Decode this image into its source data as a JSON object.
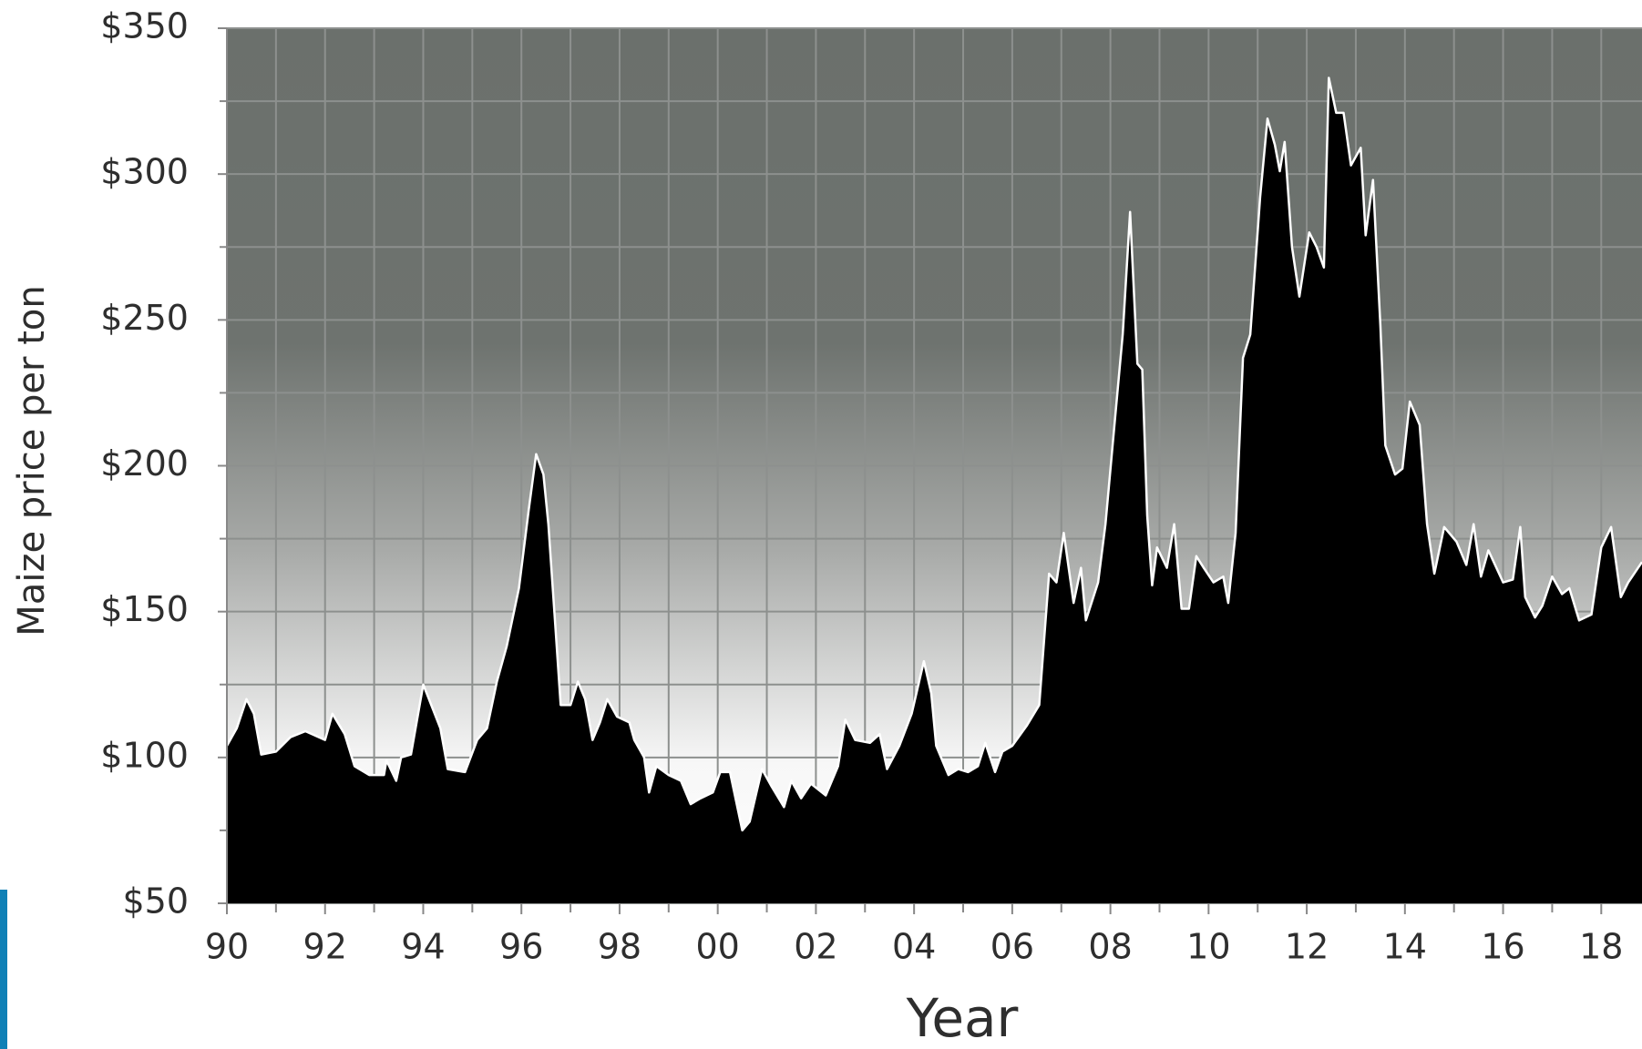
{
  "chart_data": {
    "type": "area",
    "y_label": "Maize price per ton",
    "x_label": "Year",
    "color": "#000000",
    "line_color": "#ffffff",
    "grid": true,
    "xlim": [
      1990,
      2018.83
    ],
    "ylim": [
      50,
      350
    ],
    "xticks": [
      {
        "value": 1990,
        "label": "90"
      },
      {
        "value": 1992,
        "label": "92"
      },
      {
        "value": 1994,
        "label": "94"
      },
      {
        "value": 1996,
        "label": "96"
      },
      {
        "value": 1998,
        "label": "98"
      },
      {
        "value": 2000,
        "label": "00"
      },
      {
        "value": 2002,
        "label": "02"
      },
      {
        "value": 2004,
        "label": "04"
      },
      {
        "value": 2006,
        "label": "06"
      },
      {
        "value": 2008,
        "label": "08"
      },
      {
        "value": 2010,
        "label": "10"
      },
      {
        "value": 2012,
        "label": "12"
      },
      {
        "value": 2014,
        "label": "14"
      },
      {
        "value": 2016,
        "label": "16"
      },
      {
        "value": 2018,
        "label": "18"
      }
    ],
    "x_minor_ticks": [
      1991,
      1993,
      1995,
      1997,
      1999,
      2001,
      2003,
      2005,
      2007,
      2009,
      2011,
      2013,
      2015,
      2017
    ],
    "yticks": [
      {
        "value": 50,
        "label": "$50"
      },
      {
        "value": 100,
        "label": "$100"
      },
      {
        "value": 150,
        "label": "$150"
      },
      {
        "value": 200,
        "label": "$200"
      },
      {
        "value": 250,
        "label": "$250"
      },
      {
        "value": 300,
        "label": "$300"
      },
      {
        "value": 350,
        "label": "$350"
      }
    ],
    "y_minor_ticks": [
      75,
      125,
      175,
      225,
      275,
      325
    ],
    "x": [
      1990.0,
      1990.2,
      1990.4,
      1990.55,
      1990.7,
      1991.0,
      1991.3,
      1991.6,
      1992.0,
      1992.15,
      1992.4,
      1992.6,
      1992.9,
      1993.2,
      1993.25,
      1993.45,
      1993.55,
      1993.75,
      1994.0,
      1994.35,
      1994.5,
      1994.85,
      1995.1,
      1995.3,
      1995.5,
      1995.7,
      1995.95,
      1996.15,
      1996.3,
      1996.45,
      1996.55,
      1996.7,
      1996.8,
      1997.0,
      1997.15,
      1997.3,
      1997.45,
      1997.6,
      1997.75,
      1997.95,
      1998.2,
      1998.3,
      1998.5,
      1998.6,
      1998.75,
      1999.0,
      1999.25,
      1999.45,
      1999.65,
      1999.9,
      2000.05,
      2000.25,
      2000.5,
      2000.65,
      2000.9,
      2001.1,
      2001.35,
      2001.5,
      2001.7,
      2001.9,
      2002.2,
      2002.45,
      2002.6,
      2002.8,
      2003.1,
      2003.3,
      2003.45,
      2003.7,
      2003.95,
      2004.2,
      2004.35,
      2004.45,
      2004.7,
      2004.9,
      2005.1,
      2005.3,
      2005.45,
      2005.65,
      2005.8,
      2006.0,
      2006.3,
      2006.55,
      2006.75,
      2006.9,
      2007.05,
      2007.25,
      2007.4,
      2007.5,
      2007.75,
      2007.9,
      2008.05,
      2008.25,
      2008.4,
      2008.55,
      2008.65,
      2008.75,
      2008.85,
      2008.95,
      2009.15,
      2009.3,
      2009.45,
      2009.6,
      2009.75,
      2009.9,
      2010.1,
      2010.3,
      2010.4,
      2010.55,
      2010.7,
      2010.85,
      2011.05,
      2011.2,
      2011.35,
      2011.45,
      2011.55,
      2011.7,
      2011.85,
      2012.05,
      2012.2,
      2012.35,
      2012.45,
      2012.6,
      2012.75,
      2012.9,
      2013.1,
      2013.2,
      2013.35,
      2013.5,
      2013.6,
      2013.8,
      2013.95,
      2014.1,
      2014.3,
      2014.45,
      2014.6,
      2014.8,
      2015.05,
      2015.25,
      2015.4,
      2015.55,
      2015.7,
      2016.0,
      2016.2,
      2016.35,
      2016.45,
      2016.65,
      2016.8,
      2017.0,
      2017.2,
      2017.35,
      2017.55,
      2017.8,
      2018.0,
      2018.2,
      2018.4,
      2018.55,
      2018.83
    ],
    "values": [
      104,
      110,
      120,
      115,
      101,
      102,
      107,
      109,
      106,
      115,
      108,
      97,
      94,
      94,
      99,
      92,
      100,
      101,
      125,
      110,
      96,
      95,
      106,
      110,
      126,
      138,
      158,
      185,
      204,
      197,
      180,
      143,
      118,
      118,
      126,
      120,
      106,
      112,
      120,
      114,
      112,
      106,
      100,
      88,
      97,
      94,
      92,
      84,
      86,
      88,
      95,
      95,
      75,
      78,
      96,
      90,
      83,
      92,
      86,
      91,
      87,
      97,
      113,
      106,
      105,
      108,
      96,
      104,
      115,
      133,
      122,
      104,
      94,
      96,
      95,
      97,
      105,
      95,
      102,
      104,
      111,
      118,
      163,
      160,
      177,
      153,
      165,
      147,
      160,
      180,
      208,
      245,
      287,
      235,
      233,
      183,
      159,
      172,
      165,
      180,
      151,
      151,
      169,
      165,
      160,
      162,
      153,
      177,
      237,
      245,
      292,
      319,
      310,
      301,
      311,
      275,
      258,
      280,
      275,
      268,
      333,
      321,
      321,
      303,
      309,
      279,
      298,
      248,
      207,
      197,
      199,
      222,
      214,
      180,
      163,
      179,
      174,
      166,
      180,
      162,
      171,
      160,
      161,
      179,
      155,
      148,
      152,
      162,
      156,
      158,
      147,
      149,
      172,
      179,
      155,
      160,
      167
    ]
  }
}
